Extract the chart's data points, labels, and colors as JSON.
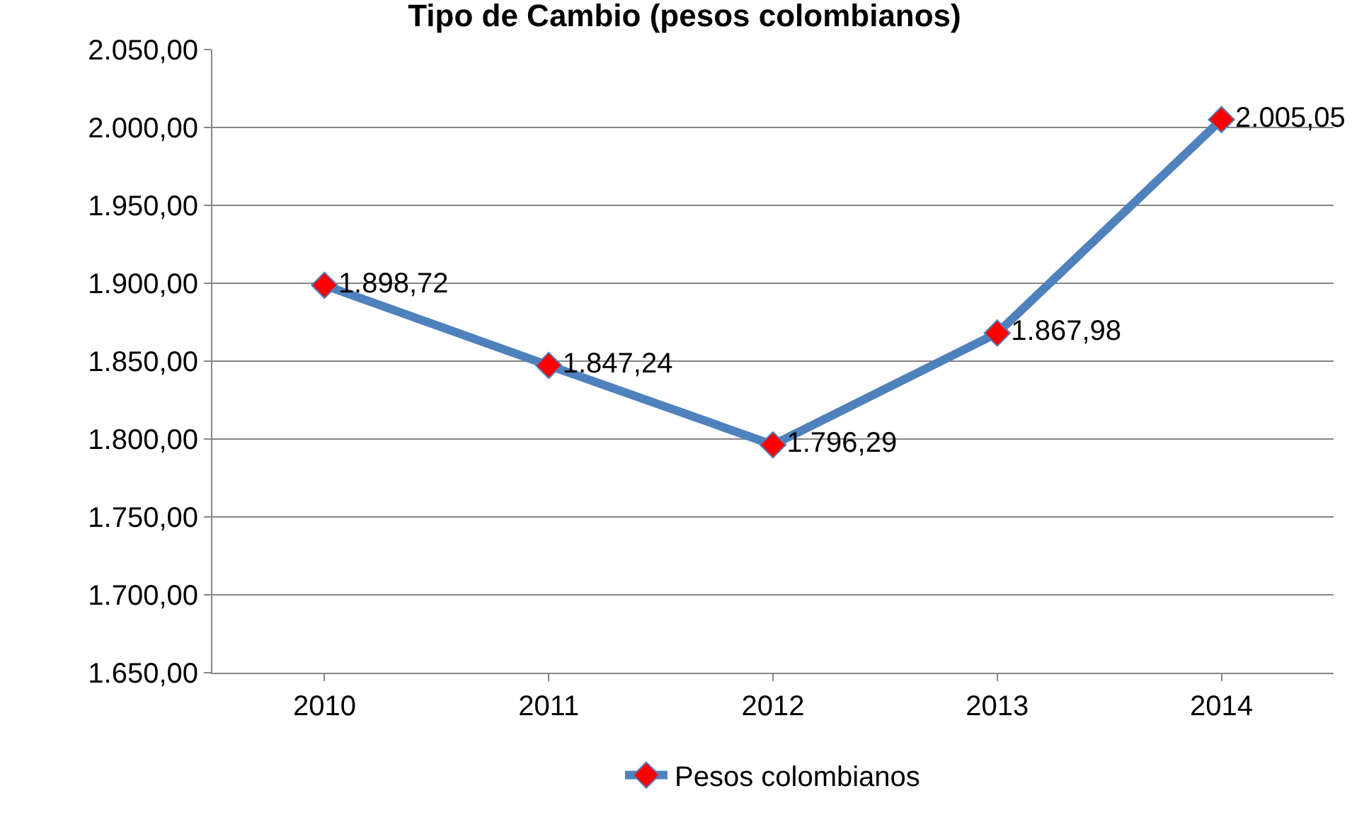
{
  "chart_data": {
    "type": "line",
    "title": "Tipo de Cambio (pesos colombianos)",
    "categories": [
      "2010",
      "2011",
      "2012",
      "2013",
      "2014"
    ],
    "series": [
      {
        "name": "Pesos colombianos",
        "color": "#4f81bd",
        "colors": [
          "#ff0000",
          "#ff0000",
          "#ff0000",
          "#ff0000",
          "#ff0000"
        ],
        "values": [
          1898.72,
          1847.24,
          1796.29,
          1867.98,
          2005.05
        ],
        "value_labels": [
          "1.898,72",
          "1.847,24",
          "1.796,29",
          "1.867,98",
          "2.005,05"
        ]
      }
    ],
    "ylim": [
      1650,
      2050
    ],
    "yticks": [
      {
        "value": 1650,
        "label": "1.650,00"
      },
      {
        "value": 1700,
        "label": "1.700,00"
      },
      {
        "value": 1750,
        "label": "1.750,00"
      },
      {
        "value": 1800,
        "label": "1.800,00"
      },
      {
        "value": 1850,
        "label": "1.850,00"
      },
      {
        "value": 1900,
        "label": "1.900,00"
      },
      {
        "value": 1950,
        "label": "1.950,00"
      },
      {
        "value": 2000,
        "label": "2.000,00"
      },
      {
        "value": 2050,
        "label": "2.050,00"
      }
    ],
    "grid": "y",
    "legend": "bottom",
    "marker": "diamond",
    "line_style": "solid"
  }
}
